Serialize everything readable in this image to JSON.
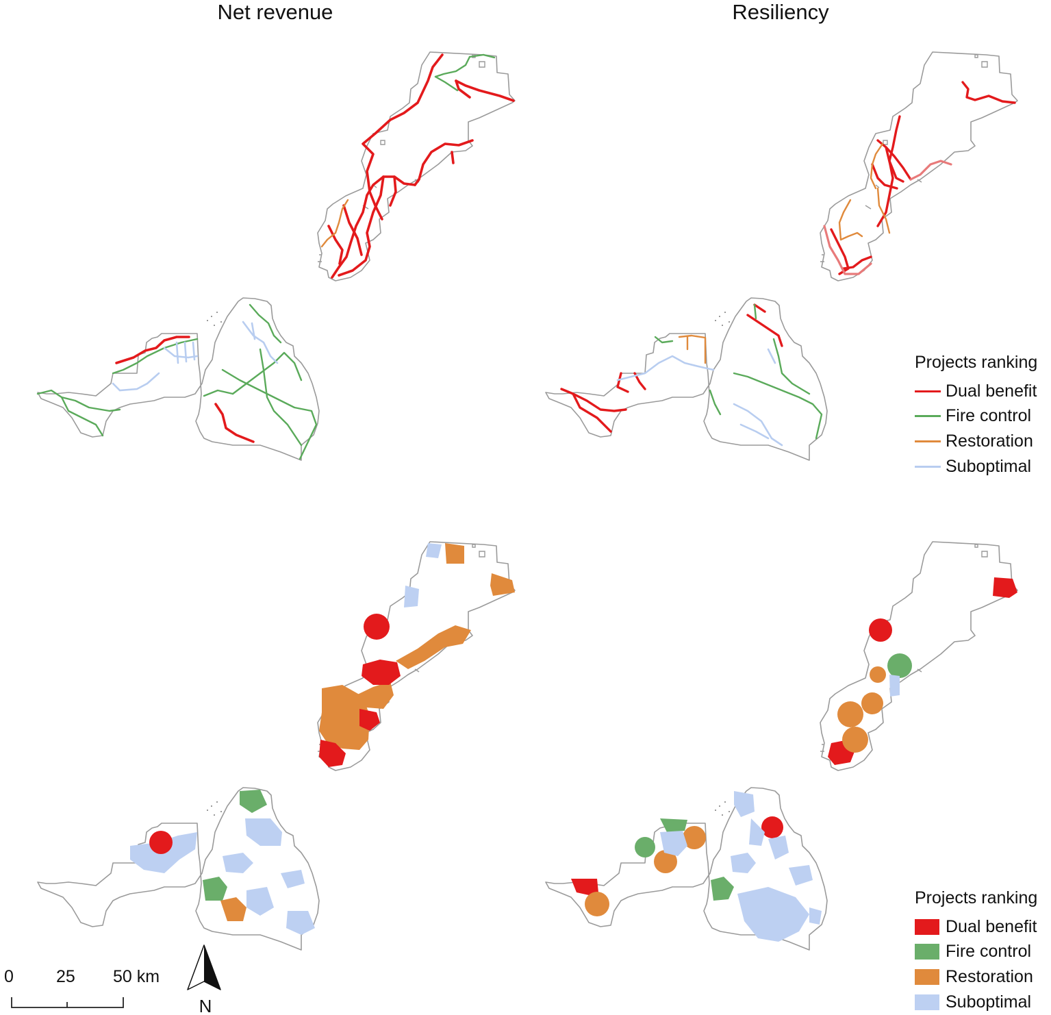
{
  "titles": {
    "left": "Net revenue",
    "right": "Resiliency"
  },
  "legend_roads": {
    "title": "Projects ranking",
    "items": [
      {
        "label": "Dual benefit",
        "color": "#e31a1c"
      },
      {
        "label": "Fire control",
        "color": "#5aaa5a"
      },
      {
        "label": "Restoration",
        "color": "#e08a3c"
      },
      {
        "label": "Suboptimal",
        "color": "#b8cdf0"
      }
    ]
  },
  "legend_areas": {
    "title": "Projects ranking",
    "items": [
      {
        "label": "Dual benefit",
        "color": "#e31a1c"
      },
      {
        "label": "Fire control",
        "color": "#6aae6a"
      },
      {
        "label": "Restoration",
        "color": "#e08a3c"
      },
      {
        "label": "Suboptimal",
        "color": "#bdd0f2"
      }
    ]
  },
  "scale_bar": {
    "labels": [
      "0",
      "25",
      "50 km"
    ]
  },
  "north_arrow": {
    "label": "N",
    "icon": "north-arrow-icon"
  },
  "colors": {
    "boundary": "#9a9a9a"
  }
}
